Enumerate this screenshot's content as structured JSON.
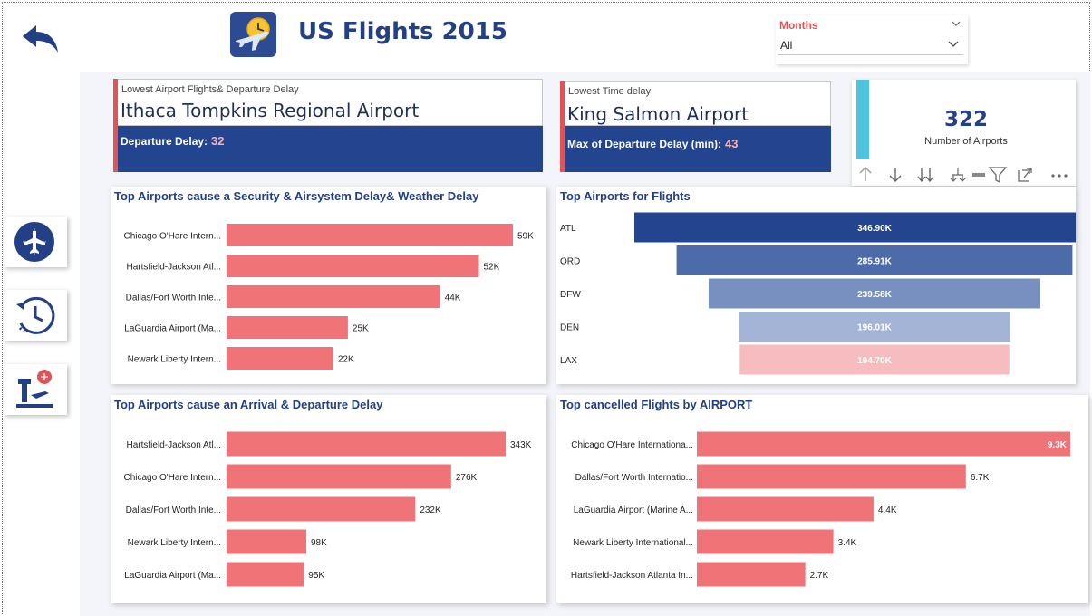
{
  "header": {
    "title": "US Flights 2015",
    "back_icon": "back-arrow-icon",
    "logo_icon": "plane-clock-icon"
  },
  "slicer": {
    "title": "Months",
    "value": "All"
  },
  "nav": [
    {
      "icon": "airplane-radar-icon"
    },
    {
      "icon": "history-clock-icon"
    },
    {
      "icon": "airport-tower-icon"
    }
  ],
  "cards": {
    "lowest_flights": {
      "label": "Lowest Airport Flights& Departure Delay",
      "value": "Ithaca Tompkins Regional Airport",
      "metric_label": "Departure Delay:",
      "metric_value": "32"
    },
    "lowest_time": {
      "label": "Lowest Time delay",
      "value": "King Salmon Airport",
      "metric_label": "Max of Departure Delay (min):",
      "metric_value": "43"
    },
    "airports_count": {
      "value": "322",
      "label": "Number of Airports"
    }
  },
  "colors": {
    "bar": "#f07378",
    "funnel": [
      "#234590",
      "#4d6aa9",
      "#7890c0",
      "#a3b4d6",
      "#f7bcc0"
    ],
    "title": "#233f86",
    "card_blue": "#234590",
    "accent_red": "#e05458"
  },
  "chart_data": [
    {
      "type": "bar",
      "orientation": "horizontal",
      "title": "Top Airports cause a Security & Airsystem Delay& Weather Delay",
      "categories": [
        "Chicago O'Hare Intern...",
        "Hartsfield-Jackson Atl...",
        "Dallas/Fort Worth Inte...",
        "LaGuardia Airport (Ma...",
        "Newark Liberty Intern..."
      ],
      "values": [
        59,
        52,
        44,
        25,
        22
      ],
      "labels": [
        "59K",
        "52K",
        "44K",
        "25K",
        "22K"
      ],
      "xlim": [
        0,
        59
      ]
    },
    {
      "type": "funnel",
      "title": "Top Airports for Flights",
      "categories": [
        "ATL",
        "ORD",
        "DFW",
        "DEN",
        "LAX"
      ],
      "values": [
        346.9,
        285.91,
        239.58,
        196.01,
        194.7
      ],
      "labels": [
        "346.90K",
        "285.91K",
        "239.58K",
        "196.01K",
        "194.70K"
      ]
    },
    {
      "type": "bar",
      "orientation": "horizontal",
      "title": "Top Airports cause an Arrival & Departure Delay",
      "categories": [
        "Hartsfield-Jackson Atl...",
        "Chicago O'Hare Intern...",
        "Dallas/Fort Worth Inte...",
        "Newark Liberty Intern...",
        "LaGuardia Airport (Ma..."
      ],
      "values": [
        343,
        276,
        232,
        98,
        95
      ],
      "labels": [
        "343K",
        "276K",
        "232K",
        "98K",
        "95K"
      ],
      "xlim": [
        0,
        343
      ]
    },
    {
      "type": "bar",
      "orientation": "horizontal",
      "title": "Top cancelled Flights by AIRPORT",
      "categories": [
        "Chicago O'Hare Internationa...",
        "Dallas/Fort Worth Internatio...",
        "LaGuardia Airport (Marine A...",
        "Newark Liberty International...",
        "Hartsfield-Jackson Atlanta In..."
      ],
      "values": [
        9.3,
        6.7,
        4.4,
        3.4,
        2.7
      ],
      "labels": [
        "9.3K",
        "6.7K",
        "4.4K",
        "3.4K",
        "2.7K"
      ],
      "xlim": [
        0,
        9.3
      ]
    }
  ]
}
